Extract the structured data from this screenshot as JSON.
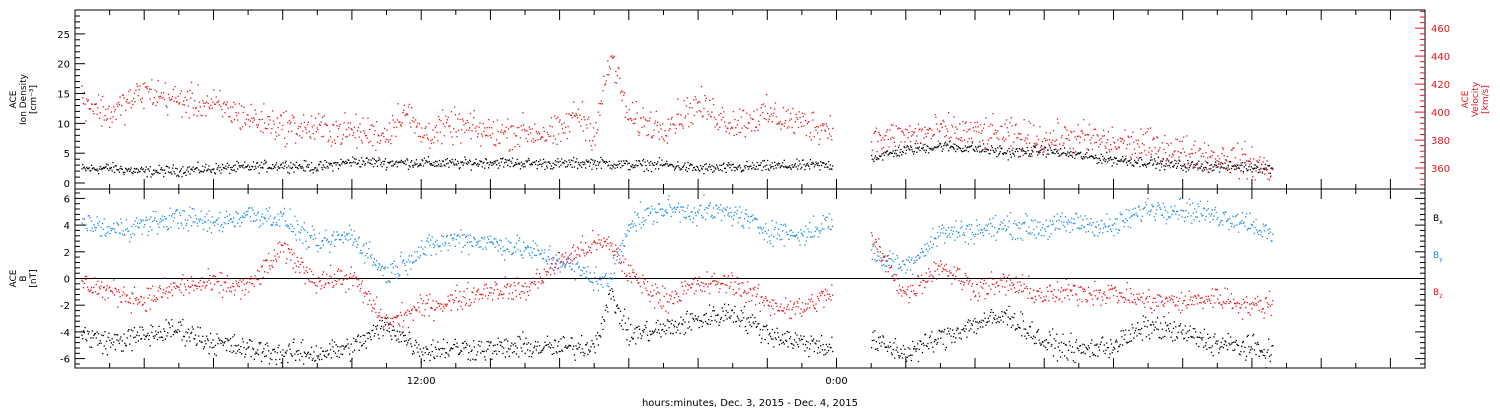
{
  "figure": {
    "time_axis_label": "hours:minutes, Dec.  3, 2015 - Dec.  4, 2015",
    "time_ticks": [
      {
        "hour": 12,
        "label": "12:00"
      },
      {
        "hour": 24,
        "label": "0:00"
      }
    ],
    "time_range_hours": [
      2,
      41
    ]
  },
  "colors": {
    "black": "#000000",
    "red": "#e8141c",
    "blue": "#1a8ce8"
  },
  "chart_data": [
    {
      "type": "scatter",
      "panel": "plasma",
      "ylabel_lines": [
        "ACE",
        "Ion Density",
        "[cm⁻³]"
      ],
      "y2label_lines": [
        "ACE",
        "Velocity",
        "[km/s]"
      ],
      "ylim": [
        -1,
        29
      ],
      "yticks": [
        0,
        5,
        10,
        15,
        20,
        25
      ],
      "y2lim": [
        345,
        473
      ],
      "y2ticks": [
        360,
        380,
        400,
        420,
        440,
        460
      ],
      "grid": false,
      "series": [
        {
          "color": "#000000",
          "axis": "left",
          "points": [
            [
              2.2,
              2.3
            ],
            [
              3,
              2.5
            ],
            [
              4,
              1.9
            ],
            [
              5,
              2.1
            ],
            [
              6,
              2.4
            ],
            [
              7,
              2.6
            ],
            [
              8,
              3.0
            ],
            [
              9,
              2.6
            ],
            [
              10,
              3.6
            ],
            [
              11,
              3.4
            ],
            [
              12,
              3.4
            ],
            [
              13,
              3.2
            ],
            [
              14,
              3.5
            ],
            [
              15,
              3.3
            ],
            [
              16,
              3.2
            ],
            [
              17,
              3.4
            ],
            [
              18,
              3.0
            ],
            [
              19,
              3.1
            ],
            [
              20,
              2.4
            ],
            [
              21,
              2.5
            ],
            [
              22,
              2.8
            ],
            [
              23,
              2.9
            ],
            [
              23.9,
              3.0
            ],
            [
              25,
              4.2
            ],
            [
              26,
              5.5
            ],
            [
              27,
              6.2
            ],
            [
              28,
              5.8
            ],
            [
              29,
              5.0
            ],
            [
              30,
              5.5
            ],
            [
              31,
              4.6
            ],
            [
              32,
              3.9
            ],
            [
              33,
              3.5
            ],
            [
              34,
              2.9
            ],
            [
              35,
              2.8
            ],
            [
              36,
              2.7
            ],
            [
              36.6,
              2.5
            ]
          ],
          "gaps": [
            [
              23.9,
              25
            ]
          ]
        },
        {
          "color": "#e8141c",
          "axis": "right",
          "points": [
            [
              2.2,
              410
            ],
            [
              3,
              398
            ],
            [
              4,
              415
            ],
            [
              5,
              408
            ],
            [
              6,
              405
            ],
            [
              7,
              396
            ],
            [
              8,
              390
            ],
            [
              9,
              388
            ],
            [
              10,
              386
            ],
            [
              11,
              384
            ],
            [
              11.5,
              402
            ],
            [
              12,
              384
            ],
            [
              13,
              390
            ],
            [
              14,
              385
            ],
            [
              15,
              386
            ],
            [
              16,
              384
            ],
            [
              16.5,
              400
            ],
            [
              17,
              384
            ],
            [
              17.5,
              440
            ],
            [
              18,
              395
            ],
            [
              19,
              390
            ],
            [
              20,
              405
            ],
            [
              21,
              392
            ],
            [
              22,
              398
            ],
            [
              23,
              392
            ],
            [
              23.9,
              388
            ],
            [
              25,
              380
            ],
            [
              26,
              383
            ],
            [
              27,
              386
            ],
            [
              28,
              385
            ],
            [
              29,
              383
            ],
            [
              30,
              380
            ],
            [
              31,
              382
            ],
            [
              32,
              378
            ],
            [
              33,
              376
            ],
            [
              34,
              372
            ],
            [
              35,
              368
            ],
            [
              36,
              364
            ],
            [
              36.6,
              358
            ]
          ],
          "gaps": [
            [
              23.9,
              25
            ]
          ]
        }
      ]
    },
    {
      "type": "scatter",
      "panel": "magnetic-field",
      "ylabel_lines": [
        "ACE",
        "B",
        "[nT]"
      ],
      "ylim": [
        -6.7,
        6.7
      ],
      "yticks": [
        -6,
        -4,
        -2,
        0,
        2,
        4,
        6
      ],
      "zero_line": true,
      "grid": false,
      "legend_position": "right",
      "series": [
        {
          "name_base": "B",
          "name_sub": "x",
          "color": "#000000",
          "points": [
            [
              2.2,
              -4.2
            ],
            [
              3,
              -4.8
            ],
            [
              4,
              -4.3
            ],
            [
              5,
              -3.8
            ],
            [
              6,
              -4.8
            ],
            [
              7,
              -5.3
            ],
            [
              8,
              -5.6
            ],
            [
              9,
              -5.6
            ],
            [
              10,
              -5.2
            ],
            [
              11,
              -3.5
            ],
            [
              11.6,
              -4.6
            ],
            [
              12,
              -5.4
            ],
            [
              13,
              -5.2
            ],
            [
              14,
              -5.3
            ],
            [
              15,
              -5.1
            ],
            [
              16,
              -5.2
            ],
            [
              17,
              -5.0
            ],
            [
              17.5,
              -1.2
            ],
            [
              18,
              -4.2
            ],
            [
              19,
              -3.8
            ],
            [
              20,
              -3.1
            ],
            [
              21,
              -2.5
            ],
            [
              22,
              -4.1
            ],
            [
              23,
              -4.8
            ],
            [
              23.9,
              -5.1
            ],
            [
              25,
              -4.7
            ],
            [
              26,
              -5.6
            ],
            [
              27,
              -4.5
            ],
            [
              28,
              -3.4
            ],
            [
              29,
              -2.8
            ],
            [
              30,
              -4.8
            ],
            [
              31,
              -5.4
            ],
            [
              32,
              -5.0
            ],
            [
              33,
              -3.6
            ],
            [
              34,
              -4.1
            ],
            [
              35,
              -4.9
            ],
            [
              36,
              -5.2
            ],
            [
              36.6,
              -5.6
            ]
          ],
          "gaps": [
            [
              23.9,
              25
            ]
          ]
        },
        {
          "name_base": "B",
          "name_sub": "y",
          "color": "#1a8ce8",
          "points": [
            [
              2.2,
              4.2
            ],
            [
              3,
              3.6
            ],
            [
              4,
              4.0
            ],
            [
              5,
              4.6
            ],
            [
              6,
              4.1
            ],
            [
              7,
              4.8
            ],
            [
              8,
              4.5
            ],
            [
              9,
              2.5
            ],
            [
              10,
              3.3
            ],
            [
              11,
              0.3
            ],
            [
              12,
              2.1
            ],
            [
              13,
              3.0
            ],
            [
              14,
              2.7
            ],
            [
              15,
              2.2
            ],
            [
              16,
              1.3
            ],
            [
              16.7,
              0.4
            ],
            [
              17.4,
              -0.4
            ],
            [
              18,
              4.1
            ],
            [
              19,
              5.2
            ],
            [
              20,
              5.0
            ],
            [
              21,
              4.9
            ],
            [
              22,
              3.6
            ],
            [
              23,
              3.2
            ],
            [
              23.9,
              4.4
            ],
            [
              25,
              1.8
            ],
            [
              26,
              0.9
            ],
            [
              27,
              3.4
            ],
            [
              28,
              3.6
            ],
            [
              29,
              3.9
            ],
            [
              30,
              3.8
            ],
            [
              31,
              4.2
            ],
            [
              32,
              3.8
            ],
            [
              33,
              5.3
            ],
            [
              34,
              5.2
            ],
            [
              35,
              4.7
            ],
            [
              36,
              4.2
            ],
            [
              36.6,
              3.0
            ]
          ],
          "gaps": [
            [
              23.9,
              25
            ]
          ]
        },
        {
          "name_base": "B",
          "name_sub": "z",
          "color": "#e8141c",
          "points": [
            [
              2.2,
              -0.3
            ],
            [
              3,
              -1.0
            ],
            [
              4,
              -1.6
            ],
            [
              5,
              -0.6
            ],
            [
              6,
              -0.4
            ],
            [
              7,
              -0.7
            ],
            [
              8,
              2.2
            ],
            [
              9,
              -0.2
            ],
            [
              10,
              0.1
            ],
            [
              11,
              -3.4
            ],
            [
              12,
              -2.2
            ],
            [
              13,
              -1.6
            ],
            [
              14,
              -0.8
            ],
            [
              15,
              -0.9
            ],
            [
              16,
              1.3
            ],
            [
              17,
              2.6
            ],
            [
              17.5,
              2.5
            ],
            [
              18,
              0.4
            ],
            [
              19,
              -1.6
            ],
            [
              20,
              -0.5
            ],
            [
              21,
              -0.3
            ],
            [
              22,
              -1.9
            ],
            [
              23,
              -2.3
            ],
            [
              23.9,
              -1.0
            ],
            [
              25,
              3.0
            ],
            [
              26,
              -1.2
            ],
            [
              27,
              1.0
            ],
            [
              28,
              -0.7
            ],
            [
              29,
              -0.4
            ],
            [
              30,
              -1.3
            ],
            [
              31,
              -1.0
            ],
            [
              32,
              -1.1
            ],
            [
              33,
              -1.7
            ],
            [
              34,
              -1.8
            ],
            [
              35,
              -1.4
            ],
            [
              36,
              -2.1
            ],
            [
              36.6,
              -1.9
            ]
          ],
          "gaps": [
            [
              23.9,
              25
            ]
          ]
        }
      ]
    }
  ]
}
